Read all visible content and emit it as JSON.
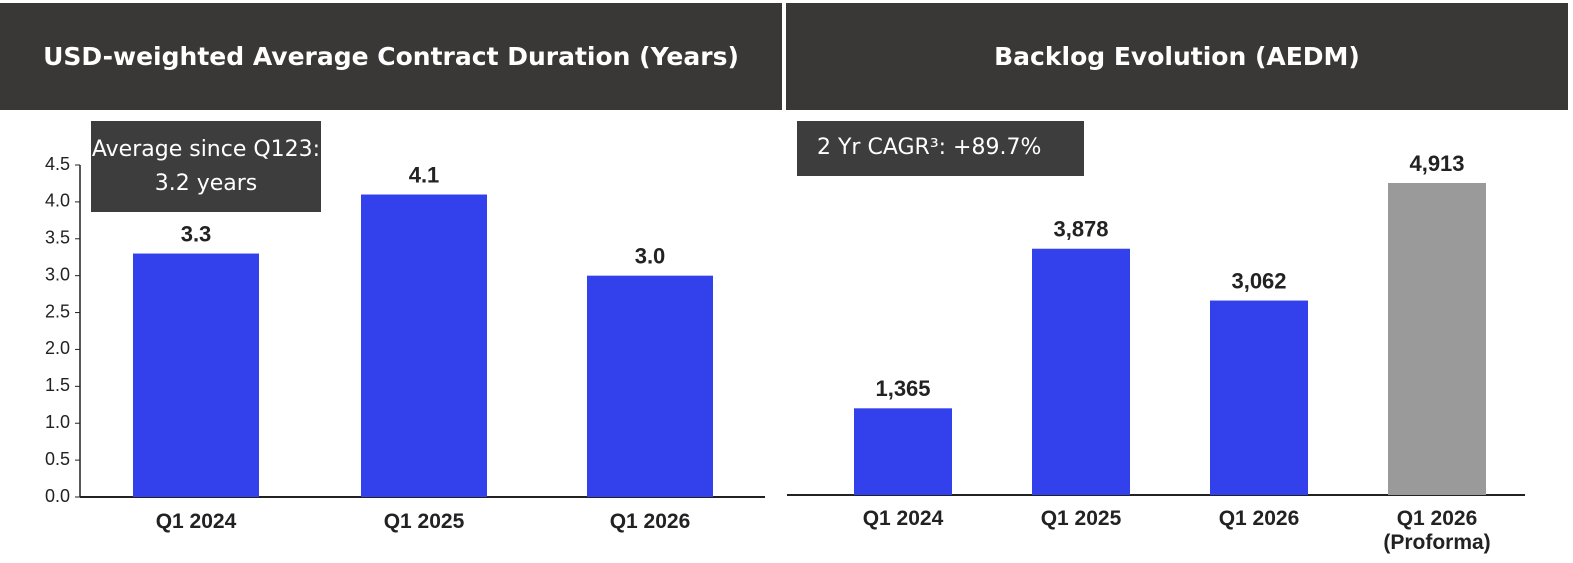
{
  "chart_data": [
    {
      "type": "bar",
      "title": "USD-weighted Average Contract Duration (Years)",
      "annotation": "Average since Q123: 3.2 years",
      "categories": [
        "Q1 2024",
        "Q1 2025",
        "Q1 2026"
      ],
      "values": [
        3.3,
        4.1,
        3.0
      ],
      "value_labels": [
        "3.3",
        "4.1",
        "3.0"
      ],
      "color": "#3341ec",
      "ylim": [
        0,
        4.5
      ],
      "yticks": [
        {
          "value": 0,
          "label": "0.0"
        },
        0.5,
        {
          "value": 1,
          "label": "1.0"
        },
        1.5,
        {
          "value": 2,
          "label": "2.0"
        },
        2.5,
        {
          "value": 3,
          "label": "3.0"
        },
        3.5,
        {
          "value": 4,
          "label": "4.0"
        },
        4.5
      ]
    },
    {
      "type": "bar",
      "title": "Backlog Evolution (AEDM)",
      "annotation": "2 Yr CAGR³: +89.7%",
      "categories": [
        "Q1 2024",
        "Q1 2025",
        "Q1 2026",
        "Q1 2026 (Proforma)"
      ],
      "values": [
        1365,
        3878,
        3062,
        4913
      ],
      "value_labels": [
        "1,365",
        "3,878",
        "3,062",
        "4,913"
      ],
      "colors": [
        "#3341ec",
        "#3341ec",
        "#3341ec",
        "#9a9a9a"
      ]
    }
  ]
}
